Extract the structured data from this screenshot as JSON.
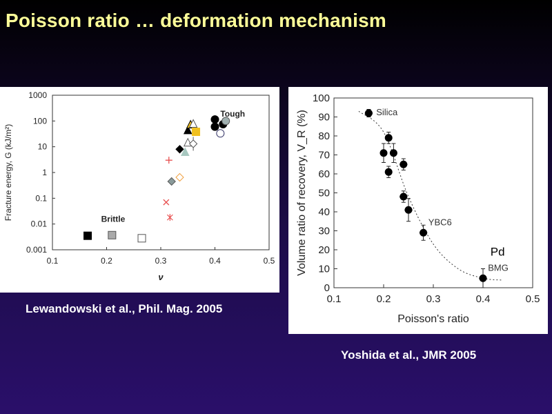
{
  "slide": {
    "title": "Poisson ratio … deformation mechanism",
    "caption_left": "Lewandowski et al., Phil. Mag. 2005",
    "caption_right": "Yoshida et al., JMR 2005"
  },
  "chart_data": [
    {
      "type": "scatter",
      "xlabel": "ν",
      "ylabel": "Fracture energy, G (kJ/m²)",
      "xlim": [
        0.1,
        0.5
      ],
      "ylim": [
        0.001,
        1000
      ],
      "yscale": "log",
      "xticks": [
        "0.1",
        "0.2",
        "0.3",
        "0.4",
        "0.5"
      ],
      "yticks": [
        "0.001",
        "0.01",
        "0.1",
        "1",
        "10",
        "100",
        "1000"
      ],
      "annotations": [
        {
          "text": "Tough",
          "x": 0.41,
          "y": 150
        },
        {
          "text": "Brittle",
          "x": 0.19,
          "y": 0.012
        }
      ],
      "points": [
        {
          "x": 0.165,
          "y": 0.0035,
          "marker": "square",
          "fill": "#000000",
          "stroke": "#000000"
        },
        {
          "x": 0.21,
          "y": 0.0037,
          "marker": "square",
          "fill": "#aaaaaa",
          "stroke": "#555555"
        },
        {
          "x": 0.265,
          "y": 0.0028,
          "marker": "square",
          "fill": "#ffffff",
          "stroke": "#555555"
        },
        {
          "x": 0.31,
          "y": 0.07,
          "marker": "x",
          "fill": "none",
          "stroke": "#e85050"
        },
        {
          "x": 0.317,
          "y": 0.018,
          "marker": "star",
          "fill": "none",
          "stroke": "#e85050"
        },
        {
          "x": 0.315,
          "y": 3,
          "marker": "plus",
          "fill": "none",
          "stroke": "#e85050"
        },
        {
          "x": 0.32,
          "y": 0.45,
          "marker": "diamond",
          "fill": "#8a9a9a",
          "stroke": "#555555"
        },
        {
          "x": 0.335,
          "y": 0.65,
          "marker": "diamond",
          "fill": "#ffffff",
          "stroke": "#f0a040"
        },
        {
          "x": 0.335,
          "y": 8,
          "marker": "diamond",
          "fill": "#000000",
          "stroke": "#000000"
        },
        {
          "x": 0.345,
          "y": 6,
          "marker": "triangle",
          "fill": "#a8c8c0",
          "stroke": "#a8c8c0"
        },
        {
          "x": 0.35,
          "y": 14,
          "marker": "triangle",
          "fill": "#ffffff",
          "stroke": "#555555"
        },
        {
          "x": 0.36,
          "y": 13,
          "marker": "diamond-bar",
          "fill": "#ffffff",
          "stroke": "#555555"
        },
        {
          "x": 0.35,
          "y": 42,
          "marker": "triangle",
          "fill": "#000000",
          "stroke": "#000000"
        },
        {
          "x": 0.355,
          "y": 70,
          "marker": "triangle",
          "fill": "#f0c020",
          "stroke": "#000000"
        },
        {
          "x": 0.36,
          "y": 75,
          "marker": "triangle",
          "fill": "#ffffff",
          "stroke": "#555555"
        },
        {
          "x": 0.365,
          "y": 38,
          "marker": "square",
          "fill": "#f0c020",
          "stroke": "#f0c020"
        },
        {
          "x": 0.4,
          "y": 115,
          "marker": "circle",
          "fill": "#000000",
          "stroke": "#000000"
        },
        {
          "x": 0.4,
          "y": 60,
          "marker": "circle",
          "fill": "#000000",
          "stroke": "#000000"
        },
        {
          "x": 0.41,
          "y": 33,
          "marker": "circle",
          "fill": "#ffffff",
          "stroke": "#333366"
        },
        {
          "x": 0.415,
          "y": 75,
          "marker": "circle",
          "fill": "#000000",
          "stroke": "#000000"
        },
        {
          "x": 0.42,
          "y": 100,
          "marker": "circle",
          "fill": "#a0b0b0",
          "stroke": "#555555"
        }
      ]
    },
    {
      "type": "scatter",
      "xlabel": "Poisson's ratio",
      "ylabel": "Volume ratio of recovery, V_R (%)",
      "xlim": [
        0.1,
        0.5
      ],
      "ylim": [
        0,
        100
      ],
      "xticks": [
        "0.1",
        "0.2",
        "0.3",
        "0.4",
        "0.5"
      ],
      "yticks": [
        "0",
        "10",
        "20",
        "30",
        "40",
        "50",
        "60",
        "70",
        "80",
        "90",
        "100"
      ],
      "series": [
        {
          "x": [
            0.17,
            0.2,
            0.21,
            0.21,
            0.22,
            0.24,
            0.24,
            0.25,
            0.28,
            0.4
          ],
          "y": [
            92,
            71,
            79,
            61,
            71,
            65,
            48,
            41,
            29,
            5
          ],
          "xerr": [
            0.008,
            0.006,
            0.006,
            0.006,
            0.006,
            0.008,
            0.008,
            0.008,
            0.008,
            0.008
          ],
          "yerr": [
            2,
            5,
            3,
            3,
            5,
            3,
            3,
            6,
            4,
            5
          ]
        }
      ],
      "trend": {
        "x": [
          0.15,
          0.2,
          0.25,
          0.3,
          0.35,
          0.4,
          0.44
        ],
        "y": [
          93,
          82,
          48,
          23,
          10,
          5,
          4
        ]
      },
      "annotations": [
        {
          "text": "Silica",
          "x": 0.185,
          "y": 91
        },
        {
          "text": "YBC6",
          "x": 0.29,
          "y": 33
        },
        {
          "text": "Pd",
          "x": 0.415,
          "y": 17
        },
        {
          "text": "BMG",
          "x": 0.41,
          "y": 9
        }
      ]
    }
  ]
}
